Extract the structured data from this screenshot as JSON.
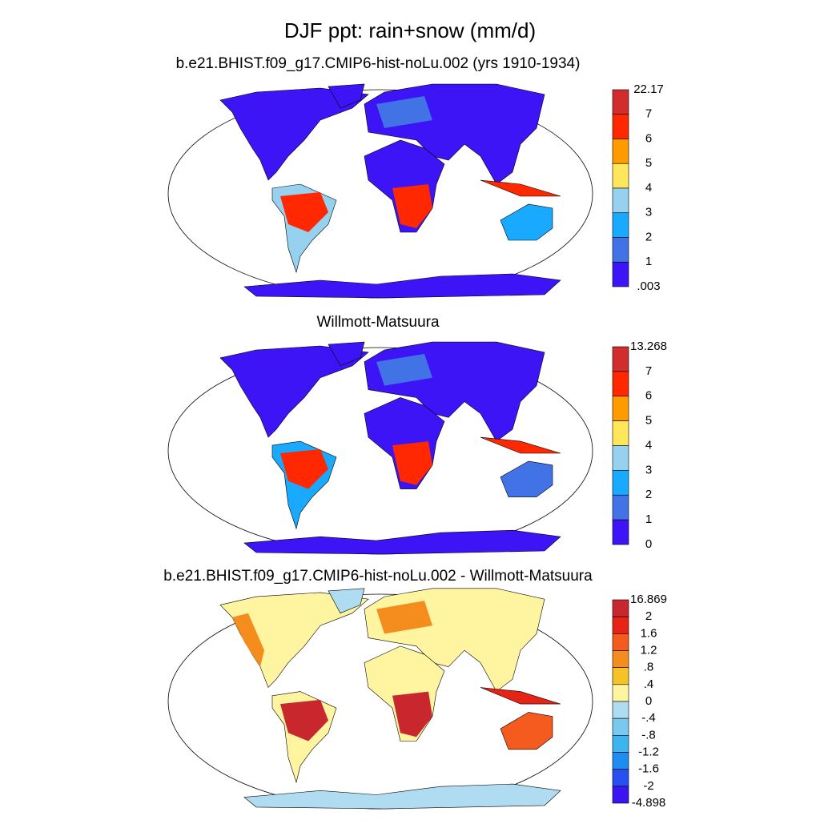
{
  "title": "DJF ppt: rain+snow (mm/d)",
  "panels": [
    {
      "subtitle": "b.e21.BHIST.f09_g17.CMIP6-hist-noLu.002 (yrs 1910-1934)",
      "colorbar": {
        "labels": [
          "22.17",
          "7",
          "6",
          "5",
          "4",
          "3",
          "2",
          "1",
          ".003"
        ],
        "colors": [
          "#d22d2d",
          "#ff2800",
          "#ff9b00",
          "#ffe65a",
          "#96d2f0",
          "#19aaff",
          "#4173e6",
          "#3c14f5"
        ]
      }
    },
    {
      "subtitle": "Willmott-Matsuura",
      "colorbar": {
        "labels": [
          "13.268",
          "7",
          "6",
          "5",
          "4",
          "3",
          "2",
          "1",
          "0"
        ],
        "colors": [
          "#d22d2d",
          "#ff2800",
          "#ff9b00",
          "#ffe65a",
          "#96d2f0",
          "#19aaff",
          "#4173e6",
          "#3c14f5"
        ]
      }
    },
    {
      "subtitle": "b.e21.BHIST.f09_g17.CMIP6-hist-noLu.002 - Willmott-Matsuura",
      "colorbar": {
        "labels": [
          "16.869",
          "2",
          "1.6",
          "1.2",
          ".8",
          ".4",
          "0",
          "-.4",
          "-.8",
          "-1.2",
          "-1.6",
          "-2",
          "-4.898"
        ],
        "colors": [
          "#c8282d",
          "#e62314",
          "#f55a1e",
          "#f58c1e",
          "#f5c328",
          "#fff5a0",
          "#afdcf0",
          "#78c8f0",
          "#3cb4f0",
          "#1e8cf0",
          "#2850f0",
          "#3c14f0"
        ]
      }
    }
  ]
}
